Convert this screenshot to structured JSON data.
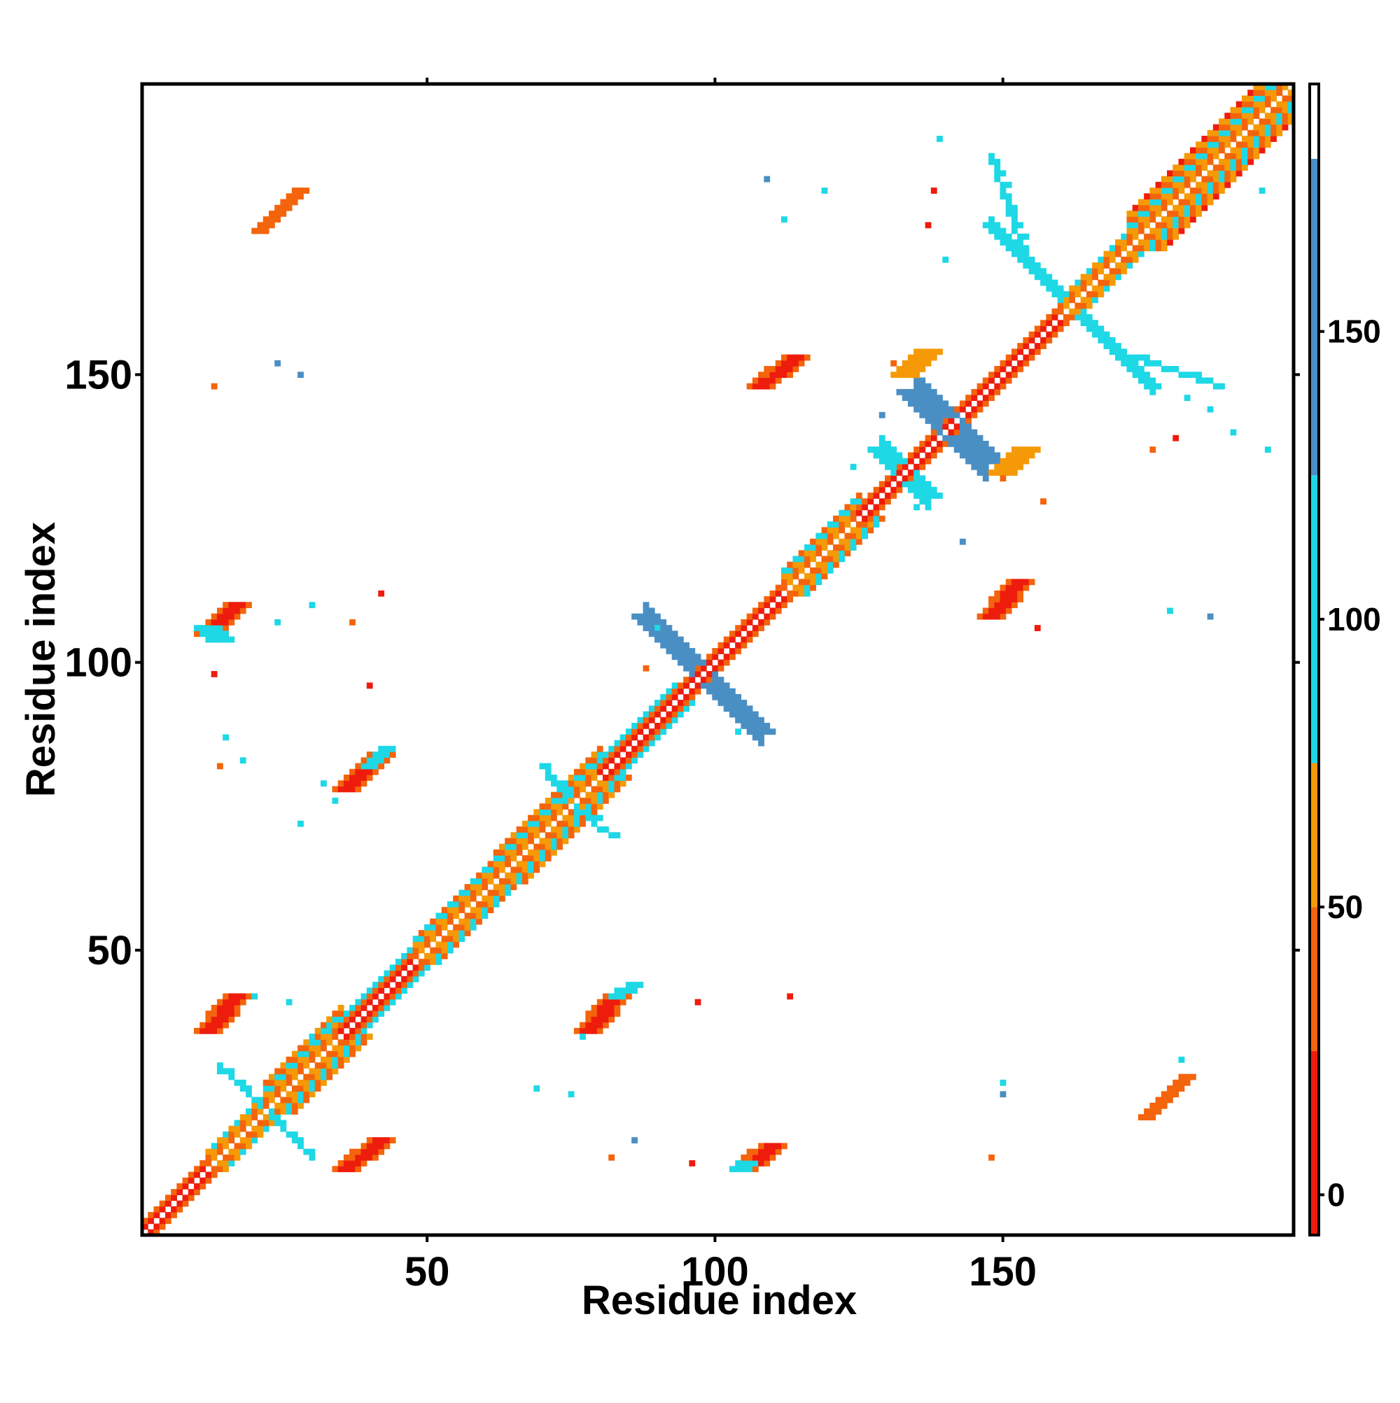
{
  "chart_data": {
    "type": "heatmap",
    "title": "",
    "xlabel": "Residue index",
    "ylabel": "Residue index",
    "xlim": [
      1,
      200
    ],
    "ylim": [
      1,
      200
    ],
    "x_ticks": [
      "50",
      "100",
      "150"
    ],
    "x_tick_values": [
      50,
      100,
      150
    ],
    "y_ticks": [
      "50",
      "100",
      "150"
    ],
    "y_tick_values": [
      50,
      100,
      150
    ],
    "colorbar": {
      "ticks": [
        "0",
        "50",
        "100",
        "150"
      ],
      "tick_values": [
        0,
        50,
        100,
        150
      ],
      "range": [
        -7,
        193
      ],
      "bands": [
        {
          "from": -7,
          "to": 25,
          "color": "#ee1c0c"
        },
        {
          "from": 25,
          "to": 50,
          "color": "#f4640c"
        },
        {
          "from": 50,
          "to": 75,
          "color": "#f59a06"
        },
        {
          "from": 75,
          "to": 125,
          "color": "#1ed8e6"
        },
        {
          "from": 125,
          "to": 180,
          "color": "#4a8fc4"
        },
        {
          "from": 180,
          "to": 193,
          "color": "#ffffff"
        }
      ]
    },
    "diagonal": {
      "from": 1,
      "to": 199
    },
    "diagonal_bands": [
      {
        "from": 1,
        "to": 12,
        "halfwidth": 2,
        "pattern": "plain"
      },
      {
        "from": 12,
        "to": 22,
        "halfwidth": 3,
        "pattern": "helix"
      },
      {
        "from": 22,
        "to": 35,
        "halfwidth": 5,
        "pattern": "helix"
      },
      {
        "from": 35,
        "to": 48,
        "halfwidth": 3,
        "pattern": "plain"
      },
      {
        "from": 48,
        "to": 62,
        "halfwidth": 4,
        "pattern": "helix"
      },
      {
        "from": 62,
        "to": 80,
        "halfwidth": 5,
        "pattern": "helix"
      },
      {
        "from": 80,
        "to": 93,
        "halfwidth": 3,
        "pattern": "plain"
      },
      {
        "from": 93,
        "to": 112,
        "halfwidth": 2,
        "pattern": "plain"
      },
      {
        "from": 112,
        "to": 125,
        "halfwidth": 4,
        "pattern": "helix"
      },
      {
        "from": 125,
        "to": 160,
        "halfwidth": 2,
        "pattern": "plain"
      },
      {
        "from": 160,
        "to": 172,
        "halfwidth": 3,
        "pattern": "helix"
      },
      {
        "from": 172,
        "to": 199,
        "halfwidth": 6,
        "pattern": "helix"
      }
    ],
    "cross_patterns": [
      {
        "cx": 98,
        "cy": 98,
        "len": 10,
        "w": 2,
        "value": 140
      },
      {
        "cx": 141,
        "cy": 141,
        "len": 6,
        "w": 3,
        "value": 140
      },
      {
        "cx": 162,
        "cy": 162,
        "len": 14,
        "w": 1,
        "value": 110
      },
      {
        "cx": 133,
        "cy": 133,
        "len": 4,
        "w": 2,
        "value": 110
      }
    ],
    "contact_blobs": [
      {
        "x1": 12,
        "y1": 105,
        "x2": 17,
        "y2": 110,
        "w": 2,
        "value": 10
      },
      {
        "x1": 12,
        "y1": 106,
        "x2": 14,
        "y2": 104,
        "w": 2,
        "value": 100
      },
      {
        "x1": 36,
        "y1": 78,
        "x2": 42,
        "y2": 84,
        "w": 2,
        "value": 10
      },
      {
        "x1": 40,
        "y1": 82,
        "x2": 43,
        "y2": 85,
        "w": 1,
        "value": 100
      },
      {
        "x1": 12,
        "y1": 36,
        "x2": 17,
        "y2": 42,
        "w": 2,
        "value": 10
      },
      {
        "x1": 36,
        "y1": 12,
        "x2": 42,
        "y2": 17,
        "w": 2,
        "value": 10
      },
      {
        "x1": 78,
        "y1": 36,
        "x2": 83,
        "y2": 42,
        "w": 2,
        "value": 10
      },
      {
        "x1": 83,
        "y1": 42,
        "x2": 86,
        "y2": 44,
        "w": 1,
        "value": 100
      },
      {
        "x1": 105,
        "y1": 12,
        "x2": 110,
        "y2": 16,
        "w": 2,
        "value": 10
      },
      {
        "x1": 104,
        "y1": 12,
        "x2": 106,
        "y2": 13,
        "w": 1,
        "value": 100
      },
      {
        "x1": 108,
        "y1": 148,
        "x2": 114,
        "y2": 153,
        "w": 2,
        "value": 10
      },
      {
        "x1": 148,
        "y1": 108,
        "x2": 153,
        "y2": 114,
        "w": 2,
        "value": 10
      },
      {
        "x1": 133,
        "y1": 150,
        "x2": 137,
        "y2": 154,
        "w": 2,
        "value": 55
      },
      {
        "x1": 150,
        "y1": 133,
        "x2": 154,
        "y2": 137,
        "w": 2,
        "value": 55
      },
      {
        "x1": 21,
        "y1": 175,
        "x2": 28,
        "y2": 182,
        "w": 1,
        "value": 40
      },
      {
        "x1": 175,
        "y1": 21,
        "x2": 182,
        "y2": 28,
        "w": 1,
        "value": 40
      }
    ],
    "arms": [
      {
        "x1": 154,
        "y1": 170,
        "x2": 148,
        "y2": 188,
        "value": 110
      },
      {
        "x1": 170,
        "y1": 154,
        "x2": 188,
        "y2": 148,
        "value": 110
      },
      {
        "x1": 22,
        "y1": 22,
        "x2": 30,
        "y2": 14,
        "value": 100
      },
      {
        "x1": 22,
        "y1": 22,
        "x2": 14,
        "y2": 30,
        "value": 100
      },
      {
        "x1": 75,
        "y1": 75,
        "x2": 82,
        "y2": 70,
        "value": 100
      },
      {
        "x1": 75,
        "y1": 75,
        "x2": 70,
        "y2": 82,
        "value": 100
      }
    ],
    "scatter_cells": [
      [
        26,
        41,
        100
      ],
      [
        30,
        35,
        100
      ],
      [
        33,
        37,
        100
      ],
      [
        20,
        42,
        100
      ],
      [
        14,
        29,
        100
      ],
      [
        24,
        152,
        140
      ],
      [
        28,
        150,
        140
      ],
      [
        13,
        148,
        40
      ],
      [
        13,
        98,
        10
      ],
      [
        15,
        87,
        100
      ],
      [
        14,
        82,
        40
      ],
      [
        18,
        83,
        100
      ],
      [
        32,
        79,
        100
      ],
      [
        28,
        72,
        100
      ],
      [
        34,
        76,
        100
      ],
      [
        40,
        96,
        10
      ],
      [
        42,
        112,
        10
      ],
      [
        37,
        107,
        40
      ],
      [
        24,
        107,
        100
      ],
      [
        30,
        110,
        100
      ],
      [
        88,
        99,
        40
      ],
      [
        90,
        106,
        100
      ],
      [
        109,
        88,
        140
      ],
      [
        104,
        88,
        100
      ],
      [
        86,
        17,
        140
      ],
      [
        69,
        26,
        100
      ],
      [
        75,
        25,
        100
      ],
      [
        77,
        35,
        100
      ],
      [
        82,
        14,
        40
      ],
      [
        96,
        13,
        10
      ],
      [
        97,
        41,
        10
      ],
      [
        113,
        42,
        10
      ],
      [
        150,
        25,
        140
      ],
      [
        150,
        27,
        100
      ],
      [
        148,
        14,
        40
      ],
      [
        181,
        31,
        100
      ],
      [
        182,
        28,
        40
      ],
      [
        119,
        182,
        100
      ],
      [
        109,
        184,
        140
      ],
      [
        112,
        177,
        100
      ],
      [
        138,
        182,
        10
      ],
      [
        137,
        176,
        10
      ],
      [
        140,
        170,
        100
      ],
      [
        139,
        191,
        100
      ],
      [
        131,
        152,
        40
      ],
      [
        129,
        143,
        140
      ],
      [
        124,
        134,
        100
      ],
      [
        135,
        127,
        100
      ],
      [
        150,
        132,
        40
      ],
      [
        157,
        128,
        40
      ],
      [
        143,
        121,
        140
      ],
      [
        156,
        106,
        10
      ],
      [
        176,
        137,
        40
      ],
      [
        180,
        139,
        10
      ],
      [
        190,
        140,
        100
      ],
      [
        179,
        109,
        100
      ],
      [
        186,
        108,
        140
      ],
      [
        196,
        137,
        100
      ],
      [
        192,
        187,
        100
      ],
      [
        195,
        182,
        100
      ],
      [
        186,
        144,
        100
      ],
      [
        182,
        146,
        100
      ]
    ]
  }
}
